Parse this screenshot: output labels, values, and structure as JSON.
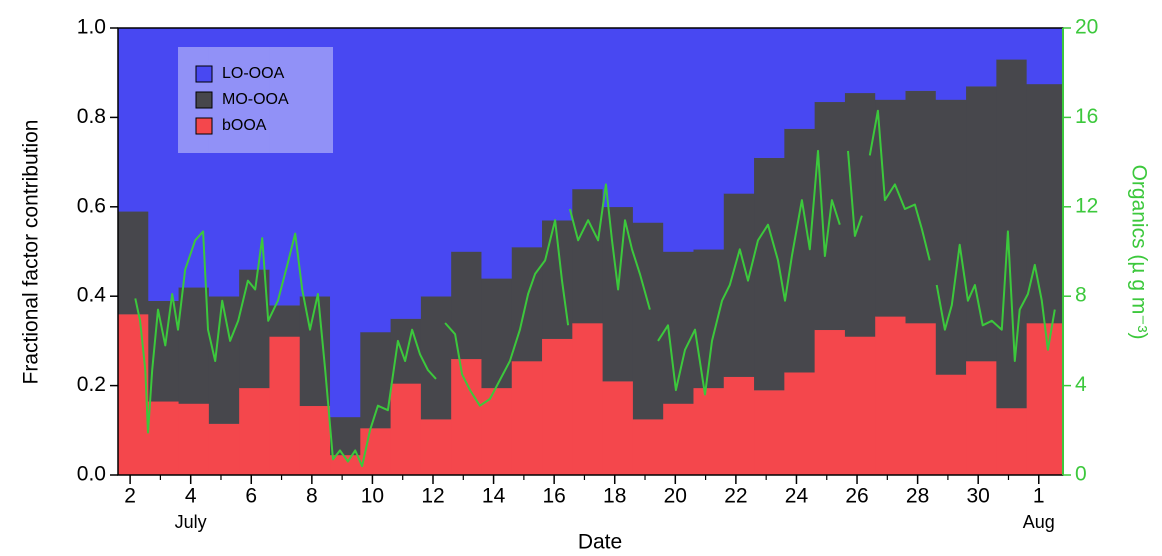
{
  "chart_data": {
    "type": "stacked_step_bar",
    "x_label": "Date",
    "y_label": "Fractional factor contribution",
    "y2_label": "Organics (µ g m⁻³)",
    "annotations": [
      {
        "text": "July",
        "x": 4
      },
      {
        "text": "Aug",
        "x": 32
      }
    ],
    "xlim": [
      1.6,
      32.8
    ],
    "xticks": [
      2,
      4,
      6,
      8,
      10,
      12,
      14,
      16,
      18,
      20,
      22,
      24,
      26,
      28,
      30,
      {
        "value": 32,
        "label": "1"
      }
    ],
    "xminorticks": [
      3,
      5,
      7,
      9,
      11,
      13,
      15,
      17,
      19,
      21,
      23,
      25,
      27,
      29,
      31
    ],
    "ylim": [
      0,
      1
    ],
    "yticks": [
      {
        "value": 0,
        "label": "0.0"
      },
      0.2,
      0.4,
      0.6,
      0.8,
      {
        "value": 1,
        "label": "1.0"
      }
    ],
    "y2lim": [
      0,
      20
    ],
    "y2ticks": [
      0,
      4,
      8,
      12,
      16,
      20
    ],
    "axis_color_y2": "#3cc83c",
    "x": [
      2.1,
      3.1,
      4.1,
      5.1,
      6.1,
      7.1,
      8.1,
      9.1,
      10.1,
      11.1,
      12.1,
      13.1,
      14.1,
      15.1,
      16.1,
      17.1,
      18.1,
      19.1,
      20.1,
      21.1,
      22.1,
      23.1,
      24.1,
      25.1,
      26.1,
      27.1,
      28.1,
      29.1,
      30.1,
      31.1,
      32.1
    ],
    "series": [
      {
        "name": "LO-OOA",
        "color": "#4848f2",
        "values": [
          0.41,
          0.61,
          0.58,
          0.6,
          0.54,
          0.62,
          0.6,
          0.87,
          0.68,
          0.65,
          0.6,
          0.5,
          0.56,
          0.49,
          0.43,
          0.36,
          0.4,
          0.435,
          0.5,
          0.495,
          0.37,
          0.29,
          0.225,
          0.165,
          0.145,
          0.16,
          0.14,
          0.16,
          0.13,
          0.07,
          0.125
        ]
      },
      {
        "name": "MO-OOA",
        "color": "#47474c",
        "values": [
          0.23,
          0.225,
          0.26,
          0.285,
          0.265,
          0.07,
          0.245,
          0.085,
          0.215,
          0.145,
          0.275,
          0.24,
          0.245,
          0.255,
          0.265,
          0.3,
          0.39,
          0.44,
          0.34,
          0.31,
          0.41,
          0.52,
          0.545,
          0.51,
          0.545,
          0.485,
          0.52,
          0.615,
          0.615,
          0.78,
          0.535
        ]
      },
      {
        "name": "bOOA",
        "color": "#f4474c",
        "values": [
          0.36,
          0.165,
          0.16,
          0.115,
          0.195,
          0.31,
          0.155,
          0.045,
          0.105,
          0.205,
          0.125,
          0.26,
          0.195,
          0.255,
          0.305,
          0.34,
          0.21,
          0.125,
          0.16,
          0.195,
          0.22,
          0.19,
          0.23,
          0.325,
          0.31,
          0.355,
          0.34,
          0.225,
          0.255,
          0.15,
          0.34
        ]
      },
      {
        "type": "line",
        "axis": "y2",
        "color": "#3cc83c",
        "x": [
          2.17,
          2.33,
          2.5,
          2.59,
          2.73,
          2.92,
          3.16,
          3.39,
          3.58,
          3.82,
          4.15,
          4.41,
          4.57,
          4.81,
          5.04,
          5.3,
          5.57,
          5.89,
          6.13,
          6.36,
          6.56,
          6.88,
          7.21,
          7.45,
          7.68,
          7.94,
          8.2,
          8.44,
          8.7,
          8.93,
          9.19,
          9.43,
          9.66,
          9.92,
          10.18,
          10.51,
          10.84,
          11.08,
          11.31,
          11.57,
          11.83,
          12.1,
          12.23,
          12.4,
          12.73,
          12.96,
          13.22,
          13.55,
          13.88,
          14.54,
          14.87,
          15.14,
          15.37,
          15.7,
          16.03,
          16.26,
          16.46,
          16.49,
          16.52,
          16.79,
          17.12,
          17.45,
          17.71,
          17.91,
          18.11,
          18.34,
          18.57,
          18.83,
          19.16,
          19.29,
          19.43,
          19.76,
          20.02,
          20.32,
          20.65,
          20.98,
          21.21,
          21.54,
          21.8,
          22.13,
          22.4,
          22.73,
          23.06,
          23.39,
          23.62,
          23.85,
          24.18,
          24.44,
          24.71,
          24.94,
          25.17,
          25.43,
          25.56,
          25.7,
          25.93,
          26.16,
          26.29,
          26.42,
          26.69,
          26.92,
          27.25,
          27.58,
          27.91,
          28.14,
          28.4,
          28.53,
          28.63,
          28.9,
          29.13,
          29.39,
          29.66,
          29.89,
          30.15,
          30.45,
          30.78,
          30.98,
          31.21,
          31.37,
          31.64,
          31.87,
          32.1,
          32.3,
          32.53
        ],
        "values": [
          7.9,
          6.9,
          4.7,
          1.9,
          4.7,
          7.4,
          5.8,
          8.1,
          6.5,
          9.2,
          10.5,
          10.9,
          6.5,
          5.1,
          7.8,
          6.0,
          6.9,
          8.7,
          8.3,
          10.6,
          6.9,
          7.8,
          9.5,
          10.8,
          8.3,
          6.5,
          8.1,
          4.7,
          0.7,
          1.1,
          0.6,
          1.1,
          0.4,
          2.0,
          3.1,
          2.9,
          6.0,
          5.1,
          6.5,
          5.4,
          4.7,
          4.3,
          null,
          6.8,
          6.3,
          4.5,
          3.8,
          3.1,
          3.4,
          5.1,
          6.5,
          8.1,
          9.0,
          9.6,
          11.4,
          8.7,
          6.7,
          null,
          11.9,
          10.5,
          11.4,
          10.5,
          13.0,
          10.5,
          8.3,
          11.4,
          10.1,
          9.0,
          7.4,
          null,
          6.0,
          6.7,
          3.8,
          5.6,
          6.5,
          3.6,
          6.0,
          7.8,
          8.5,
          10.1,
          8.7,
          10.5,
          11.2,
          9.6,
          7.8,
          9.8,
          12.3,
          10.1,
          14.5,
          9.8,
          12.3,
          11.2,
          null,
          14.5,
          10.7,
          11.6,
          null,
          14.3,
          16.3,
          12.3,
          13.0,
          11.9,
          12.1,
          11.0,
          9.6,
          null,
          8.5,
          6.5,
          7.6,
          10.3,
          7.8,
          8.5,
          6.7,
          6.9,
          6.5,
          10.9,
          5.1,
          7.4,
          8.1,
          9.4,
          7.8,
          5.6,
          7.4
        ]
      }
    ]
  }
}
